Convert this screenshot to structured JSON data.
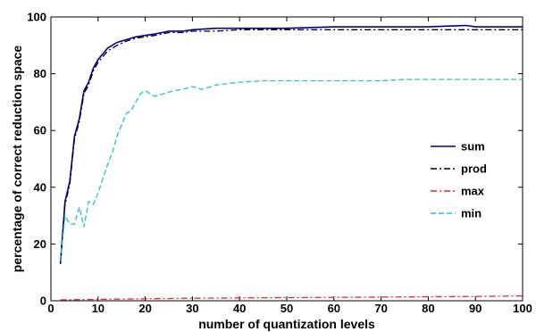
{
  "chart_data": {
    "type": "line",
    "xlabel": "number of quantization levels",
    "ylabel": "percentage of correct reduction space",
    "xlim": [
      0,
      100
    ],
    "ylim": [
      0,
      100
    ],
    "xticks": [
      0,
      10,
      20,
      30,
      40,
      50,
      60,
      70,
      80,
      90,
      100
    ],
    "yticks": [
      0,
      20,
      40,
      60,
      80,
      100
    ],
    "grid": false,
    "legend_position": "right-middle",
    "series": [
      {
        "name": "sum",
        "color": "#00008b",
        "dash": "solid",
        "x": [
          2,
          3,
          4,
          5,
          6,
          7,
          8,
          9,
          10,
          12,
          14,
          16,
          18,
          20,
          22,
          25,
          28,
          30,
          35,
          40,
          50,
          60,
          70,
          80,
          88,
          90,
          100
        ],
        "y": [
          13,
          35,
          42,
          58,
          64,
          74,
          77,
          82,
          85,
          89,
          91,
          92,
          93,
          93.5,
          94,
          95,
          95,
          95.5,
          96,
          96,
          96,
          96.5,
          96.5,
          96.5,
          97,
          96.5,
          96.5
        ]
      },
      {
        "name": "prod",
        "color": "#000000",
        "dash": "dashdot",
        "x": [
          2,
          3,
          4,
          5,
          6,
          7,
          8,
          9,
          10,
          12,
          14,
          16,
          18,
          20,
          22,
          25,
          28,
          30,
          35,
          40,
          50,
          60,
          70,
          80,
          90,
          100
        ],
        "y": [
          13,
          34,
          41,
          57,
          63,
          73,
          76,
          81,
          84,
          88,
          90,
          91.5,
          92.5,
          93,
          93.5,
          94.5,
          94.5,
          95,
          95,
          95.5,
          95.5,
          95.5,
          95.5,
          95.5,
          95.5,
          95.5
        ]
      },
      {
        "name": "max",
        "color": "#e8282a",
        "dash": "dashdot",
        "x": [
          2,
          10,
          20,
          30,
          40,
          50,
          60,
          70,
          80,
          90,
          100
        ],
        "y": [
          0.3,
          0.5,
          0.7,
          0.9,
          1.0,
          1.1,
          1.2,
          1.3,
          1.4,
          1.5,
          1.7
        ]
      },
      {
        "name": "min",
        "color": "#2bbfce",
        "dash": "dashed",
        "x": [
          2,
          3,
          4,
          5,
          6,
          7,
          8,
          9,
          10,
          11,
          12,
          13,
          14,
          15,
          16,
          17,
          18,
          19,
          20,
          22,
          24,
          26,
          28,
          30,
          32,
          35,
          40,
          45,
          50,
          55,
          60,
          65,
          70,
          75,
          80,
          85,
          90,
          95,
          100
        ],
        "y": [
          14,
          30,
          27,
          27,
          33,
          26,
          35,
          34,
          38,
          43,
          48,
          52,
          58,
          62,
          66,
          67,
          70,
          73,
          74,
          72,
          73,
          74,
          74.5,
          75.5,
          74.5,
          76,
          77,
          77.5,
          77.5,
          77.5,
          77.5,
          77.5,
          77.5,
          78,
          78,
          78,
          78,
          78,
          78
        ]
      }
    ]
  }
}
